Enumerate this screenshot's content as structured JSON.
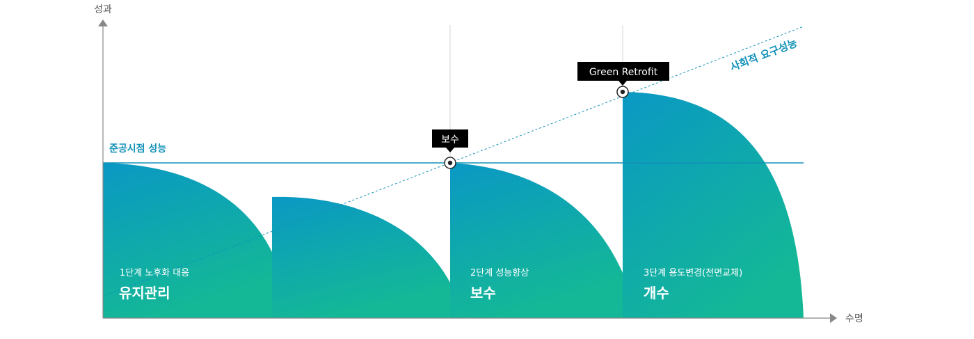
{
  "axes": {
    "y_label": "성과",
    "x_label": "수명"
  },
  "reference_line": {
    "label": "준공시점 성능"
  },
  "trend_line": {
    "label": "사회적 요구성능"
  },
  "stages": [
    {
      "subtitle": "1단계 노후화 대응",
      "title": "유지관리"
    },
    {
      "subtitle": "2단계 성능향상",
      "title": "보수"
    },
    {
      "subtitle": "3단계 용도변경(전면교체)",
      "title": "개수"
    }
  ],
  "callouts": {
    "repair": "보수",
    "retrofit": "Green Retrofit"
  },
  "colors": {
    "gradient_top": "#0a98c4",
    "gradient_bottom": "#14b896",
    "accent": "#1190b8",
    "axis": "#888888",
    "tag_bg": "#000000"
  }
}
